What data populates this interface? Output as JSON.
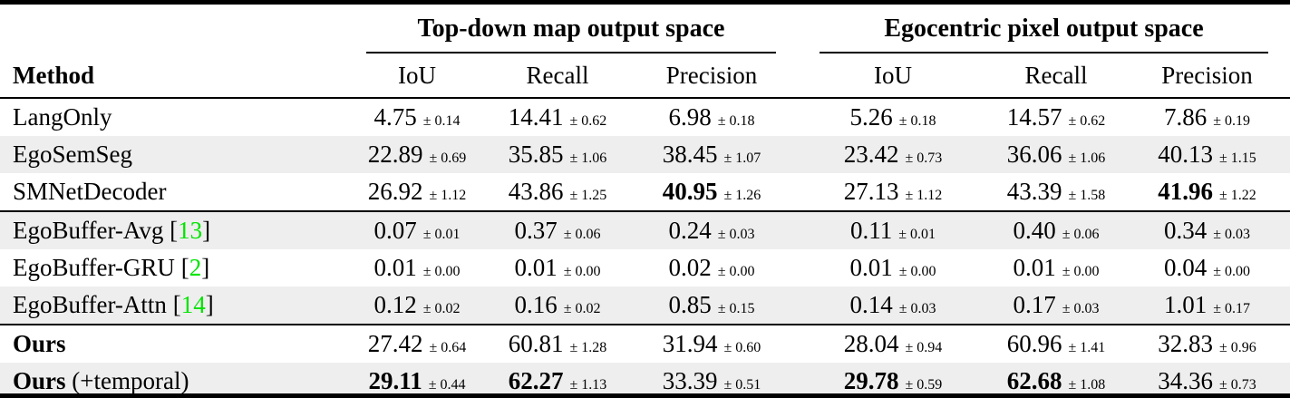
{
  "colors": {
    "text": "#000000",
    "row_stripe": "#eeeeee",
    "citation_green": "#00e400",
    "rule": "#000000"
  },
  "table": {
    "group_headers": [
      {
        "label": "Top-down map output space"
      },
      {
        "label": "Egocentric pixel output space"
      }
    ],
    "method_header": "Method",
    "metric_headers": [
      "IoU",
      "Recall",
      "Precision"
    ],
    "plus_minus": "±",
    "citation_prefix": " [",
    "citation_suffix": "]",
    "sections": [
      {
        "name": "simple-baselines",
        "rows": [
          {
            "label": "LangOnly",
            "label_bold": false,
            "suffix": null,
            "citation": null,
            "cells": [
              {
                "v": "4.75",
                "s": "0.14",
                "b": false
              },
              {
                "v": "14.41",
                "s": "0.62",
                "b": false
              },
              {
                "v": "6.98",
                "s": "0.18",
                "b": false
              },
              {
                "v": "5.26",
                "s": "0.18",
                "b": false
              },
              {
                "v": "14.57",
                "s": "0.62",
                "b": false
              },
              {
                "v": "7.86",
                "s": "0.19",
                "b": false
              }
            ]
          },
          {
            "label": "EgoSemSeg",
            "label_bold": false,
            "suffix": null,
            "citation": null,
            "cells": [
              {
                "v": "22.89",
                "s": "0.69",
                "b": false
              },
              {
                "v": "35.85",
                "s": "1.06",
                "b": false
              },
              {
                "v": "38.45",
                "s": "1.07",
                "b": false
              },
              {
                "v": "23.42",
                "s": "0.73",
                "b": false
              },
              {
                "v": "36.06",
                "s": "1.06",
                "b": false
              },
              {
                "v": "40.13",
                "s": "1.15",
                "b": false
              }
            ]
          },
          {
            "label": "SMNetDecoder",
            "label_bold": false,
            "suffix": null,
            "citation": null,
            "cells": [
              {
                "v": "26.92",
                "s": "1.12",
                "b": false
              },
              {
                "v": "43.86",
                "s": "1.25",
                "b": false
              },
              {
                "v": "40.95",
                "s": "1.26",
                "b": true
              },
              {
                "v": "27.13",
                "s": "1.12",
                "b": false
              },
              {
                "v": "43.39",
                "s": "1.58",
                "b": false
              },
              {
                "v": "41.96",
                "s": "1.22",
                "b": true
              }
            ]
          }
        ]
      },
      {
        "name": "egobuffer-baselines",
        "rows": [
          {
            "label": "EgoBuffer-Avg",
            "label_bold": false,
            "suffix": null,
            "citation": "13",
            "cells": [
              {
                "v": "0.07",
                "s": "0.01",
                "b": false
              },
              {
                "v": "0.37",
                "s": "0.06",
                "b": false
              },
              {
                "v": "0.24",
                "s": "0.03",
                "b": false
              },
              {
                "v": "0.11",
                "s": "0.01",
                "b": false
              },
              {
                "v": "0.40",
                "s": "0.06",
                "b": false
              },
              {
                "v": "0.34",
                "s": "0.03",
                "b": false
              }
            ]
          },
          {
            "label": "EgoBuffer-GRU",
            "label_bold": false,
            "suffix": null,
            "citation": "2",
            "cells": [
              {
                "v": "0.01",
                "s": "0.00",
                "b": false
              },
              {
                "v": "0.01",
                "s": "0.00",
                "b": false
              },
              {
                "v": "0.02",
                "s": "0.00",
                "b": false
              },
              {
                "v": "0.01",
                "s": "0.00",
                "b": false
              },
              {
                "v": "0.01",
                "s": "0.00",
                "b": false
              },
              {
                "v": "0.04",
                "s": "0.00",
                "b": false
              }
            ]
          },
          {
            "label": "EgoBuffer-Attn",
            "label_bold": false,
            "suffix": null,
            "citation": "14",
            "cells": [
              {
                "v": "0.12",
                "s": "0.02",
                "b": false
              },
              {
                "v": "0.16",
                "s": "0.02",
                "b": false
              },
              {
                "v": "0.85",
                "s": "0.15",
                "b": false
              },
              {
                "v": "0.14",
                "s": "0.03",
                "b": false
              },
              {
                "v": "0.17",
                "s": "0.03",
                "b": false
              },
              {
                "v": "1.01",
                "s": "0.17",
                "b": false
              }
            ]
          }
        ]
      },
      {
        "name": "ours",
        "rows": [
          {
            "label": "Ours",
            "label_bold": true,
            "suffix": null,
            "citation": null,
            "cells": [
              {
                "v": "27.42",
                "s": "0.64",
                "b": false
              },
              {
                "v": "60.81",
                "s": "1.28",
                "b": false
              },
              {
                "v": "31.94",
                "s": "0.60",
                "b": false
              },
              {
                "v": "28.04",
                "s": "0.94",
                "b": false
              },
              {
                "v": "60.96",
                "s": "1.41",
                "b": false
              },
              {
                "v": "32.83",
                "s": "0.96",
                "b": false
              }
            ]
          },
          {
            "label": "Ours",
            "label_bold": true,
            "suffix": " (+temporal)",
            "citation": null,
            "cells": [
              {
                "v": "29.11",
                "s": "0.44",
                "b": true
              },
              {
                "v": "62.27",
                "s": "1.13",
                "b": true
              },
              {
                "v": "33.39",
                "s": "0.51",
                "b": false
              },
              {
                "v": "29.78",
                "s": "0.59",
                "b": true
              },
              {
                "v": "62.68",
                "s": "1.08",
                "b": true
              },
              {
                "v": "34.36",
                "s": "0.73",
                "b": false
              }
            ]
          }
        ]
      }
    ]
  }
}
